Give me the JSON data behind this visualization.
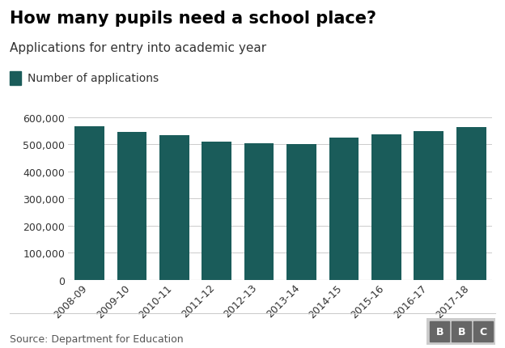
{
  "title": "How many pupils need a school place?",
  "subtitle": "Applications for entry into academic year",
  "legend_label": "Number of applications",
  "source": "Source: Department for Education",
  "categories": [
    "2008-09",
    "2009-10",
    "2010-11",
    "2011-12",
    "2012-13",
    "2013-14",
    "2014-15",
    "2015-16",
    "2016-17",
    "2017-18"
  ],
  "values": [
    567000,
    546000,
    533000,
    511000,
    504000,
    500000,
    525000,
    536000,
    550000,
    563000
  ],
  "bar_color": "#1a5c5a",
  "background_color": "#ffffff",
  "ylim": [
    0,
    630000
  ],
  "yticks": [
    0,
    100000,
    200000,
    300000,
    400000,
    500000,
    600000
  ],
  "title_fontsize": 15,
  "subtitle_fontsize": 11,
  "legend_fontsize": 10,
  "tick_fontsize": 9,
  "source_fontsize": 9
}
